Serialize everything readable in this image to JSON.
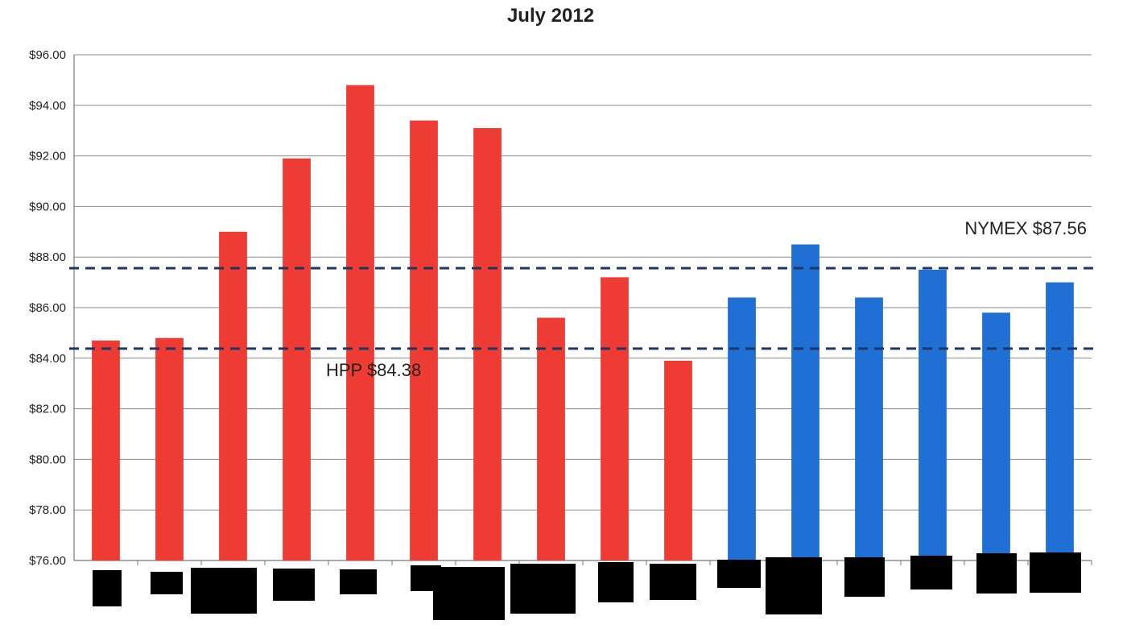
{
  "chart_data": {
    "type": "bar",
    "title": "July 2012",
    "xlabel": "",
    "ylabel": "",
    "ylim": [
      76,
      96
    ],
    "y_ticks": [
      "$76.00",
      "$78.00",
      "$80.00",
      "$82.00",
      "$84.00",
      "$86.00",
      "$88.00",
      "$90.00",
      "$92.00",
      "$94.00",
      "$96.00"
    ],
    "grid": "horizontal",
    "legend": "none",
    "category_labels_redacted": true,
    "values": [
      84.7,
      84.8,
      89.0,
      91.9,
      94.8,
      93.4,
      93.1,
      85.6,
      87.2,
      83.9,
      86.4,
      88.5,
      86.4,
      87.5,
      85.8,
      87.0
    ],
    "bar_colors": [
      "#ee3b33",
      "#ee3b33",
      "#ee3b33",
      "#ee3b33",
      "#ee3b33",
      "#ee3b33",
      "#ee3b33",
      "#ee3b33",
      "#ee3b33",
      "#ee3b33",
      "#1f6fd4",
      "#1f6fd4",
      "#1f6fd4",
      "#1f6fd4",
      "#1f6fd4",
      "#1f6fd4"
    ],
    "reference_lines": [
      {
        "label": "NYMEX $87.56",
        "value": 87.56,
        "style": "dashed",
        "color": "#1b3766"
      },
      {
        "label": "HPP $84.38",
        "value": 84.38,
        "style": "dashed",
        "color": "#1b3766"
      }
    ]
  }
}
